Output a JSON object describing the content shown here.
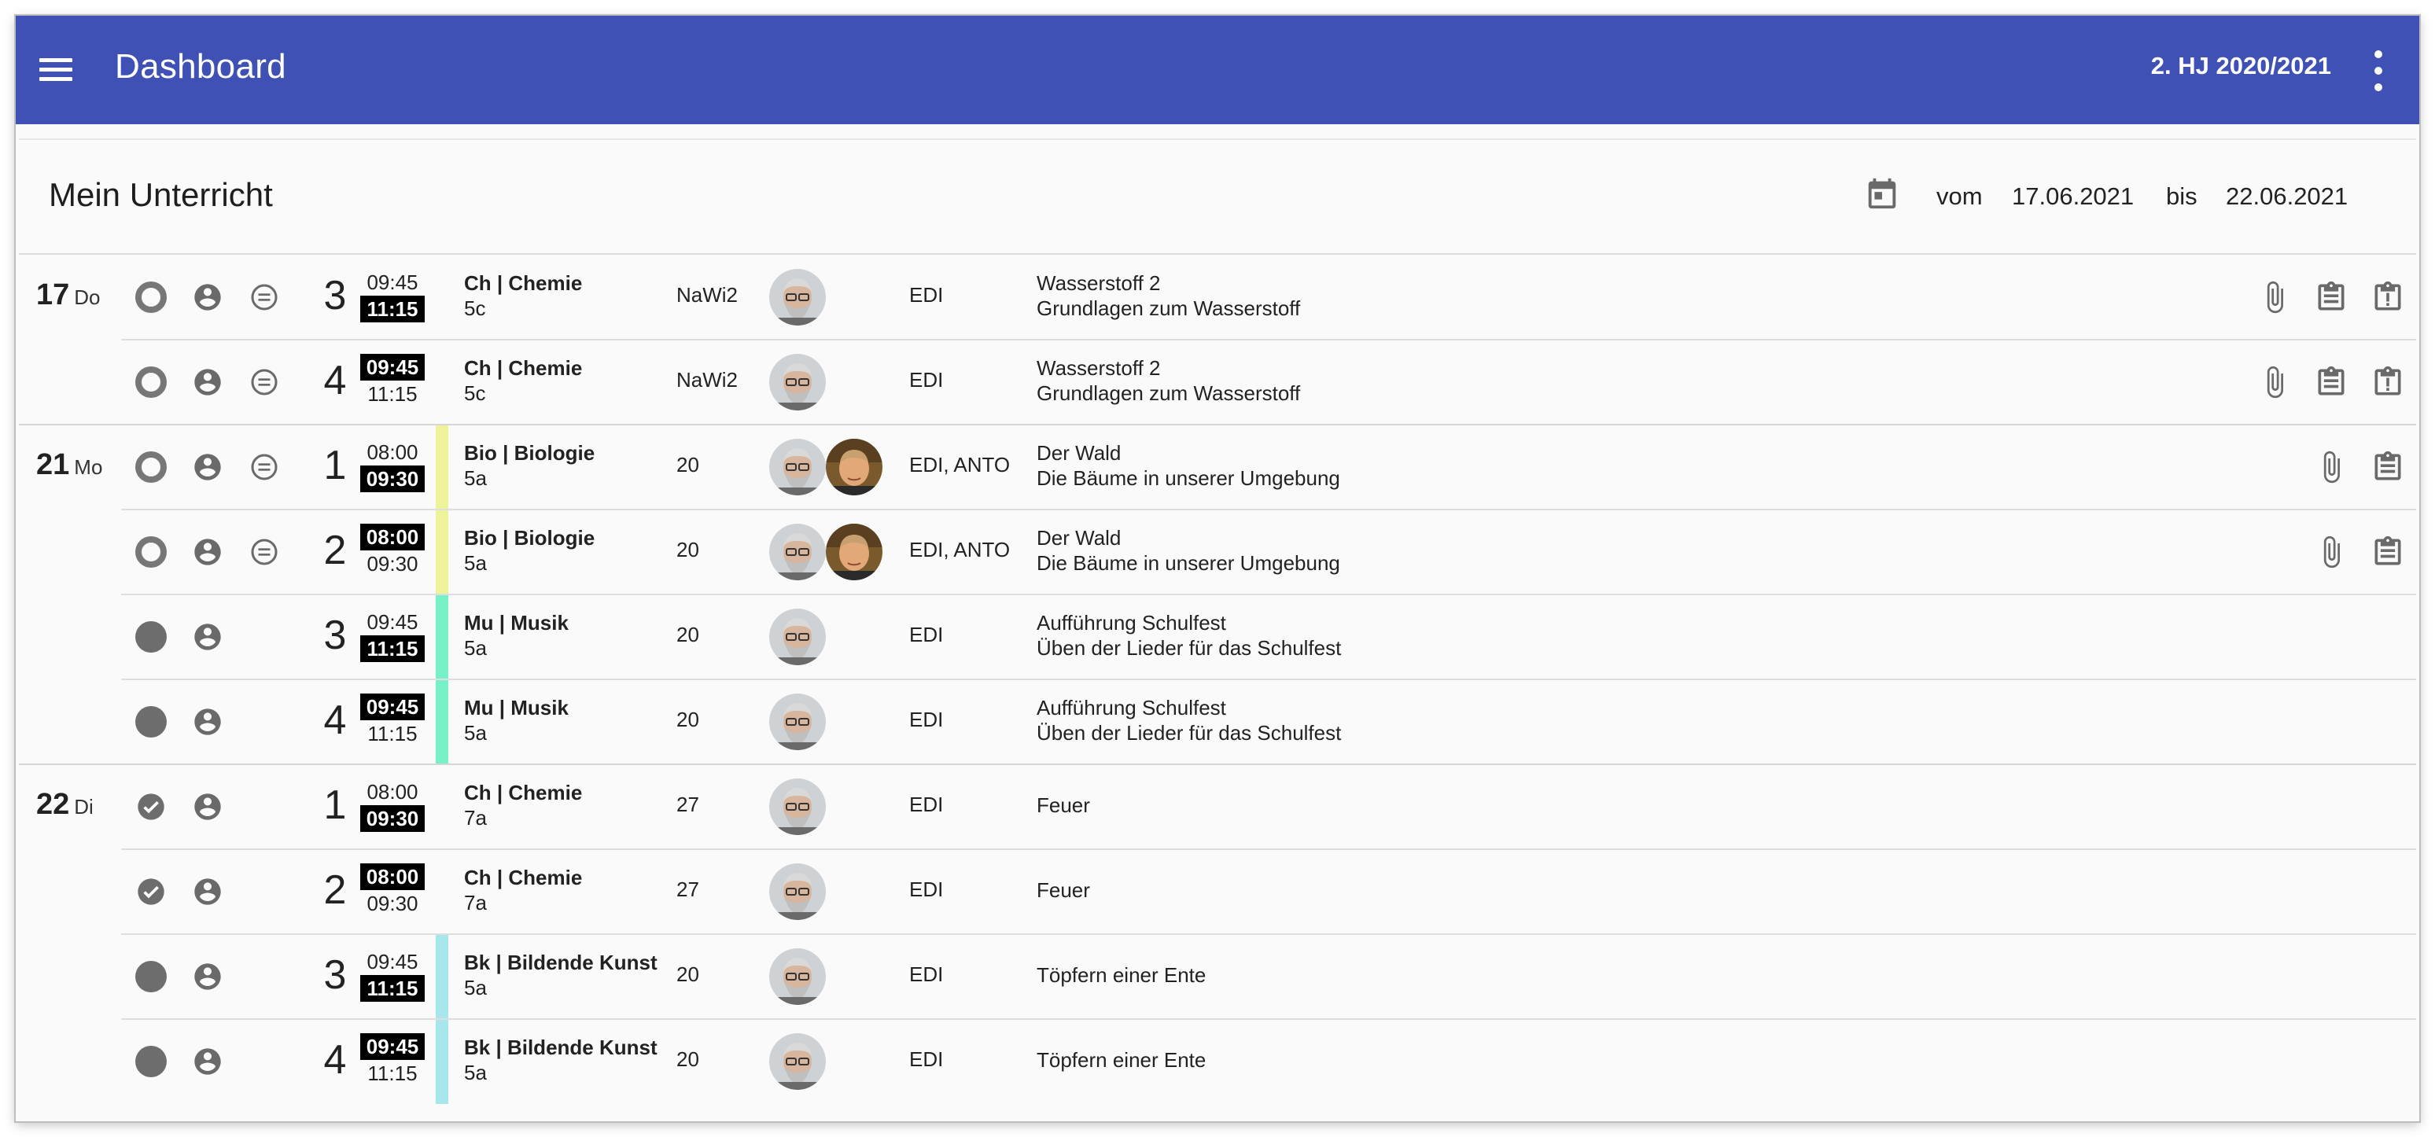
{
  "appbar": {
    "title": "Dashboard",
    "semester": "2. HJ 2020/2021",
    "icons": [
      "menu-icon",
      "more-vert-icon"
    ],
    "color": "#3f51b5"
  },
  "section": {
    "title": "Mein Unterricht",
    "from_label": "vom",
    "from_date": "17.06.2021",
    "to_label": "bis",
    "to_date": "22.06.2021"
  },
  "colors": {
    "bio_stripe": "#eef29a",
    "mu_stripe": "#76f2c6",
    "bk_stripe": "#a7e6ea"
  },
  "lessons": [
    {
      "day_num": "17",
      "day_name": "Do",
      "status": "open",
      "period": "3",
      "start": "09:45",
      "end": "11:15",
      "subject": "Ch | Chemie",
      "class": "5c",
      "room": "NaWi2",
      "teachers": "EDI",
      "topic": "Wasserstoff 2",
      "subtopic": "Grundlagen zum Wasserstoff"
    },
    {
      "day_num": "",
      "day_name": "",
      "status": "open",
      "period": "4",
      "start": "09:45",
      "end": "11:15",
      "subject": "Ch | Chemie",
      "class": "5c",
      "room": "NaWi2",
      "teachers": "EDI",
      "topic": "Wasserstoff 2",
      "subtopic": "Grundlagen zum Wasserstoff"
    },
    {
      "day_num": "21",
      "day_name": "Mo",
      "status": "open",
      "period": "1",
      "start": "08:00",
      "end": "09:30",
      "subject": "Bio | Biologie",
      "class": "5a",
      "room": "20",
      "teachers": "EDI, ANTO",
      "topic": "Der Wald",
      "subtopic": "Die Bäume in unserer Umgebung"
    },
    {
      "day_num": "",
      "day_name": "",
      "status": "open",
      "period": "2",
      "start": "08:00",
      "end": "09:30",
      "subject": "Bio | Biologie",
      "class": "5a",
      "room": "20",
      "teachers": "EDI, ANTO",
      "topic": "Der Wald",
      "subtopic": "Die Bäume in unserer Umgebung"
    },
    {
      "day_num": "",
      "day_name": "",
      "status": "filled",
      "period": "3",
      "start": "09:45",
      "end": "11:15",
      "subject": "Mu | Musik",
      "class": "5a",
      "room": "20",
      "teachers": "EDI",
      "topic": "Aufführung Schulfest",
      "subtopic": "Üben der Lieder für das Schulfest"
    },
    {
      "day_num": "",
      "day_name": "",
      "status": "filled",
      "period": "4",
      "start": "09:45",
      "end": "11:15",
      "subject": "Mu | Musik",
      "class": "5a",
      "room": "20",
      "teachers": "EDI",
      "topic": "Aufführung Schulfest",
      "subtopic": "Üben der Lieder für das Schulfest"
    },
    {
      "day_num": "22",
      "day_name": "Di",
      "status": "done",
      "period": "1",
      "start": "08:00",
      "end": "09:30",
      "subject": "Ch | Chemie",
      "class": "7a",
      "room": "27",
      "teachers": "EDI",
      "topic": "Feuer",
      "subtopic": ""
    },
    {
      "day_num": "",
      "day_name": "",
      "status": "done",
      "period": "2",
      "start": "08:00",
      "end": "09:30",
      "subject": "Ch | Chemie",
      "class": "7a",
      "room": "27",
      "teachers": "EDI",
      "topic": "Feuer",
      "subtopic": ""
    },
    {
      "day_num": "",
      "day_name": "",
      "status": "filled",
      "period": "3",
      "start": "09:45",
      "end": "11:15",
      "subject": "Bk | Bildende Kunst",
      "class": "5a",
      "room": "20",
      "teachers": "EDI",
      "topic": "Töpfern einer Ente",
      "subtopic": ""
    },
    {
      "day_num": "",
      "day_name": "",
      "status": "filled",
      "period": "4",
      "start": "09:45",
      "end": "11:15",
      "subject": "Bk | Bildende Kunst",
      "class": "5a",
      "room": "20",
      "teachers": "EDI",
      "topic": "Töpfern einer Ente",
      "subtopic": ""
    }
  ]
}
